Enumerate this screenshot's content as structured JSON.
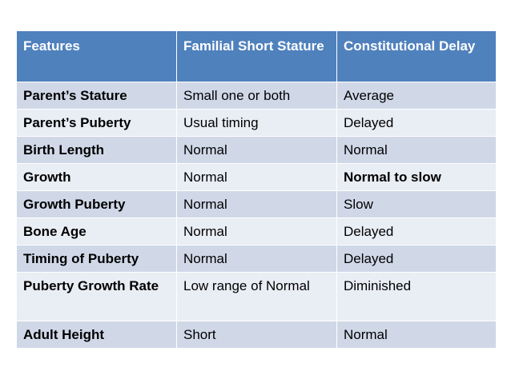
{
  "table": {
    "headers": [
      "Features",
      "Familial Short Stature",
      "Constitutional Delay"
    ],
    "rows": [
      [
        "Parent’s Stature",
        "Small one or both",
        "Average"
      ],
      [
        "Parent’s Puberty",
        "Usual timing",
        "Delayed"
      ],
      [
        "Birth Length",
        "Normal",
        "Normal"
      ],
      [
        "Growth",
        "Normal",
        "Normal to slow"
      ],
      [
        "Growth Puberty",
        "Normal",
        "Slow"
      ],
      [
        "Bone Age",
        "Normal",
        "Delayed"
      ],
      [
        "Timing of Puberty",
        "Normal",
        "Delayed"
      ],
      [
        "Puberty Growth Rate",
        "Low range of Normal",
        "Diminished"
      ],
      [
        "Adult Height",
        "Short",
        "Normal"
      ]
    ]
  },
  "colors": {
    "header_bg": "#4f81bd",
    "row_odd_bg": "#d0d8e8",
    "row_even_bg": "#e9edf4"
  }
}
